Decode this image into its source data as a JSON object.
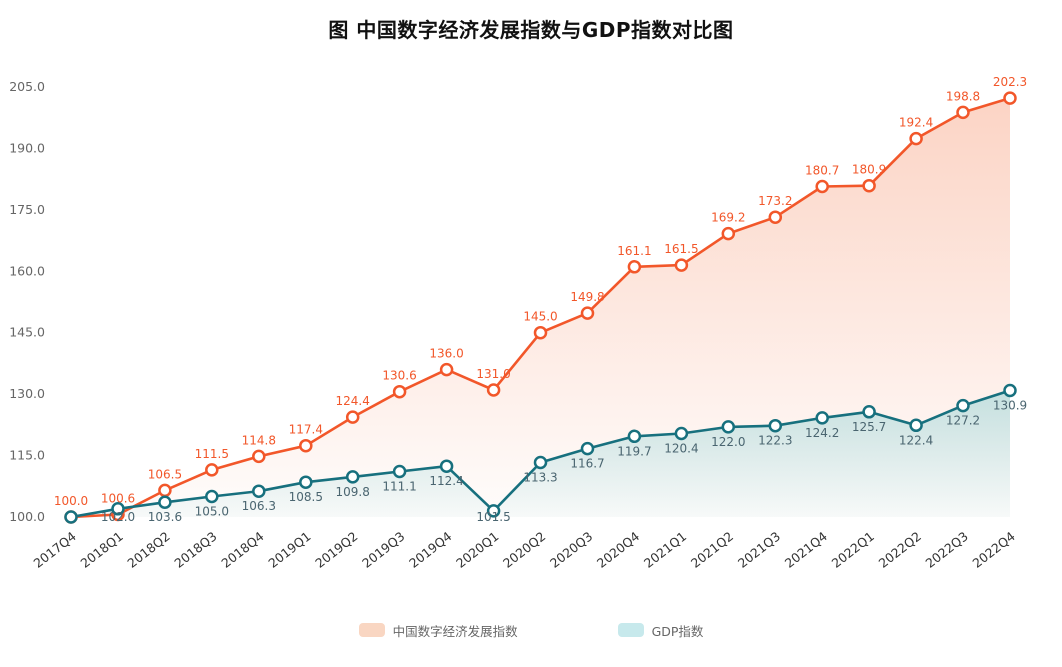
{
  "title": "图 中国数字经济发展指数与GDP指数对比图",
  "chart_data": {
    "type": "line",
    "categories": [
      "2017Q4",
      "2018Q1",
      "2018Q2",
      "2018Q3",
      "2018Q4",
      "2019Q1",
      "2019Q2",
      "2019Q3",
      "2019Q4",
      "2020Q1",
      "2020Q2",
      "2020Q3",
      "2020Q4",
      "2021Q1",
      "2021Q2",
      "2021Q3",
      "2021Q4",
      "2022Q1",
      "2022Q2",
      "2022Q3",
      "2022Q4"
    ],
    "series": [
      {
        "name": "中国数字经济发展指数",
        "values": [
          100.0,
          100.6,
          106.5,
          111.5,
          114.8,
          117.4,
          124.4,
          130.6,
          136.0,
          131.0,
          145.0,
          149.8,
          161.1,
          161.5,
          169.2,
          173.2,
          180.7,
          180.9,
          192.4,
          198.8,
          202.3
        ],
        "line_color": "#f2572a",
        "label_color": "#f2572a",
        "fill_top": "rgba(243,112,62,0.30)",
        "fill_bottom": "rgba(243,112,62,0.02)",
        "legend_swatch": "#f9d6c2",
        "label_position": "above",
        "show_first_label": true
      },
      {
        "name": "GDP指数",
        "values": [
          100.0,
          102.0,
          103.6,
          105.0,
          106.3,
          108.5,
          109.8,
          111.1,
          112.4,
          101.5,
          113.3,
          116.7,
          119.7,
          120.4,
          122.0,
          122.3,
          124.2,
          125.7,
          122.4,
          127.2,
          130.9
        ],
        "line_color": "#17707e",
        "label_color": "#4a6570",
        "fill_top": "rgba(64,186,196,0.30)",
        "fill_bottom": "rgba(64,186,196,0.04)",
        "legend_swatch": "#c7e9ec",
        "label_position": "below",
        "show_first_label": false
      }
    ],
    "ylim": [
      100,
      205
    ],
    "yticks": [
      "100.0",
      "115.0",
      "130.0",
      "145.0",
      "160.0",
      "175.0",
      "190.0",
      "205.0"
    ],
    "grid": false,
    "legend_position": "bottom",
    "axis_tick_color": "#333333",
    "y_tick_color": "#666666"
  }
}
